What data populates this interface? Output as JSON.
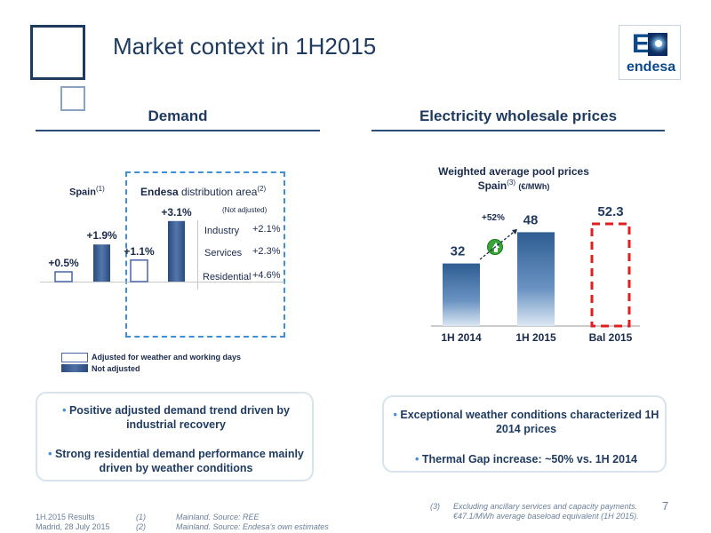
{
  "header": {
    "title": "Market context in 1H2015",
    "logo_letter": "E",
    "logo_word": "endesa"
  },
  "demand": {
    "heading": "Demand",
    "spain_label": "Spain",
    "spain_ref": "(1)",
    "endesa_bold": "Endesa",
    "endesa_rest": " distribution area",
    "endesa_ref": "(2)",
    "not_adjusted_note": "(Not adjusted)",
    "legend_adjusted": "Adjusted for weather and working days",
    "legend_not_adjusted": "Not adjusted",
    "segments": [
      {
        "name": "Industry",
        "value": "+2.1%"
      },
      {
        "name": "Services",
        "value": "+2.3%"
      },
      {
        "name": "Residential",
        "value": "+4.6%"
      }
    ]
  },
  "prices": {
    "heading": "Electricity wholesale prices",
    "chart_title": "Weighted average pool prices",
    "chart_subtitle": "Spain",
    "chart_ref": "(3)",
    "chart_unit": "(€/MWh)",
    "change_label": "+52%"
  },
  "chart_data": [
    {
      "type": "bar",
      "categories": [
        "Spain",
        "Spain",
        "Endesa distribution area",
        "Endesa distribution area"
      ],
      "series": [
        {
          "name": "Adjusted for weather and working days",
          "values": [
            0.5,
            null,
            1.1,
            null
          ]
        },
        {
          "name": "Not adjusted",
          "values": [
            null,
            1.9,
            null,
            3.1
          ]
        }
      ],
      "labels": [
        "+0.5%",
        "+1.9%",
        "+1.1%",
        "+3.1%"
      ],
      "unit": "%"
    },
    {
      "type": "bar",
      "title": "Weighted average pool prices",
      "subtitle": "Spain (€/MWh)",
      "categories": [
        "1H 2014",
        "1H 2015",
        "Bal 2015"
      ],
      "values": [
        32,
        48,
        52.3
      ],
      "labels": [
        "32",
        "48",
        "52.3"
      ]
    }
  ],
  "bullets_left": [
    "Positive adjusted demand trend driven by industrial recovery",
    "Strong residential demand performance mainly driven by weather conditions"
  ],
  "bullets_right": [
    "Exceptional weather conditions characterized 1H 2014 prices",
    "Thermal Gap increase: ~50% vs. 1H 2014"
  ],
  "footer": {
    "results": "1H.2015 Results",
    "date": "Madrid, 28 July 2015",
    "note1_num": "(1)",
    "note1_text": "Mainland. Source: REE",
    "note2_num": "(2)",
    "note2_text": "Mainland. Source: Endesa's own estimates",
    "note3_num": "(3)",
    "note3_line1": "Excluding ancillary services and capacity payments.",
    "note3_line2": "€47.1/MWh average baseload equivalent (1H 2015).",
    "page_number": "7"
  }
}
